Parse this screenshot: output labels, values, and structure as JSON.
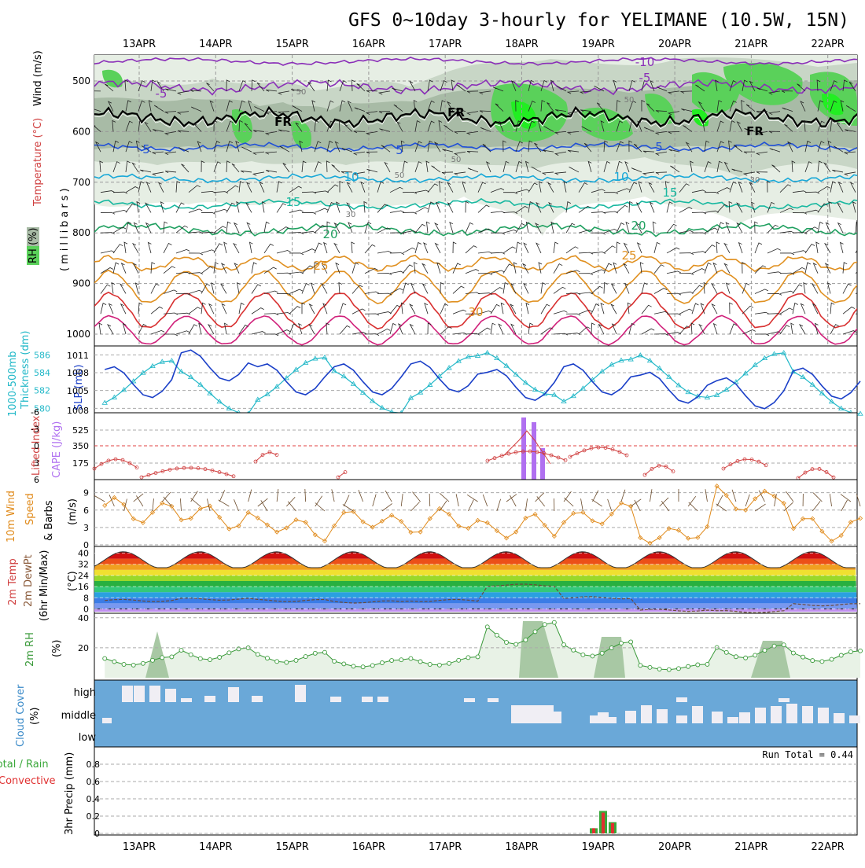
{
  "title": "GFS 0~10day 3-hourly for YELIMANE (10.5W, 15N)",
  "colors": {
    "rh_fill": "#c6d6c4",
    "rh_green": "#5ad15a",
    "rh_bright": "#22ee22",
    "temp_purple": "#8a2eb8",
    "temp_blue": "#2050d8",
    "temp_cyan": "#18a8d8",
    "temp_teal": "#18b8a0",
    "temp_green": "#20a060",
    "temp_orange": "#e09020",
    "temp_red": "#d83030",
    "temp_magenta": "#d0207a",
    "slp": "#1a3fc8",
    "thickness": "#22b8c8",
    "lifted": "#d04040",
    "cape": "#b070f0",
    "wind10": "#e08a1a",
    "rh2m": "#3a9a3a",
    "cloud_bg": "#6aa8d8",
    "cloud_fill": "#f0eef4",
    "precip_total": "#3aa83a",
    "precip_conv": "#e03030"
  },
  "icons": {
    "wind_barb": "wind-barb-icon"
  },
  "labels": {
    "date_ticks": [
      "13APR",
      "14APR",
      "15APR",
      "16APR",
      "17APR",
      "18APR",
      "19APR",
      "20APR",
      "21APR",
      "22APR"
    ],
    "upper": {
      "y_ticks": [
        "500",
        "600",
        "700",
        "800",
        "900",
        "1000"
      ],
      "axis_left": "RH (%)",
      "axis_temp": "Temperature (°C)",
      "axis_wind": "Wind (m/s)",
      "axis_pres": "(millibars)",
      "contour_labels": [
        "-10",
        "-5",
        "-5",
        "FR",
        "FR",
        "FR",
        "5",
        "5",
        "5",
        "10",
        "10",
        "15",
        "15",
        "20",
        "20",
        "25",
        "25",
        "30",
        "50",
        "50",
        "50",
        "50",
        "30",
        "30"
      ]
    },
    "slp": {
      "axis_thk": "Thickness (dm)",
      "axis_thk2": "1000-500mb",
      "axis_slp": "SLP (mb)",
      "thk_ticks": [
        "586",
        "584",
        "582",
        "580"
      ],
      "slp_ticks": [
        "1011",
        "1008",
        "1005",
        "1008"
      ]
    },
    "cape": {
      "axis_li": "Lifted Index",
      "axis_cape": "CAPE (J/kg)",
      "li_ticks": [
        "-6",
        "-3",
        "0",
        "3",
        "6"
      ],
      "cape_ticks": [
        "525",
        "350",
        "175"
      ]
    },
    "wind10": {
      "axis1": "10m Wind",
      "axis2": "Speed",
      "axis3": "& Barbs",
      "unit": "(m/s)",
      "ticks": [
        "9",
        "6",
        "3",
        "0"
      ]
    },
    "temp2m": {
      "axis1": "2m Temp",
      "axis2": "2m DewPt",
      "axis3": "(6hr Min/Max)",
      "unit": "(°C)",
      "ticks": [
        "40",
        "32",
        "24",
        "16",
        "8",
        "0"
      ]
    },
    "rh2m": {
      "axis": "2m RH",
      "unit": "(%)",
      "ticks": [
        "40",
        "20"
      ]
    },
    "cloud": {
      "axis1": "Cloud Cover",
      "unit": "(%)",
      "levels": [
        "high",
        "middle",
        "low"
      ]
    },
    "precip": {
      "axis1": "3hr Precip (mm)",
      "axis_total": "Total / Rain",
      "axis_conv": "Convective",
      "ticks": [
        "0.8",
        "0.6",
        "0.4",
        "0.2",
        "0"
      ],
      "run_total": "Run Total = 0.44"
    }
  },
  "chart_data": [
    {
      "type": "line",
      "panel": "thickness_slp",
      "x": [
        "13APR",
        "14APR",
        "15APR",
        "16APR",
        "17APR",
        "18APR",
        "19APR",
        "20APR",
        "21APR",
        "22APR"
      ],
      "series": [
        {
          "name": "Thickness (dm)",
          "values": [
            582.6,
            580.2,
            583.5,
            580.4,
            584.0,
            585.5,
            583.0,
            584.8,
            584.8,
            580.2
          ]
        },
        {
          "name": "SLP (mb)",
          "values": [
            1006.5,
            1012.5,
            1007.5,
            1007.5,
            1008.5,
            1005.5,
            1007.5,
            1004.5,
            1002.5,
            1006.0
          ]
        }
      ],
      "ylim_thickness": [
        579.5,
        587.0
      ],
      "ylim_slp": [
        1008,
        1011
      ]
    },
    {
      "type": "line",
      "panel": "lifted_index_cape",
      "x": [
        "13APR",
        "14APR",
        "15APR",
        "16APR",
        "17APR",
        "18APR",
        "19APR",
        "20APR",
        "21APR",
        "22APR"
      ],
      "series": [
        {
          "name": "Lifted Index",
          "values": [
            3,
            4,
            -2,
            6,
            4,
            -3,
            -1,
            3,
            2,
            5
          ]
        },
        {
          "name": "CAPE (J/kg)",
          "values": [
            0,
            0,
            0,
            0,
            0,
            650,
            0,
            0,
            0,
            0
          ]
        }
      ]
    },
    {
      "type": "line",
      "panel": "wind10m",
      "x": [
        "13APR",
        "14APR",
        "15APR",
        "16APR",
        "17APR",
        "18APR",
        "19APR",
        "20APR",
        "21APR",
        "22APR"
      ],
      "series": [
        {
          "name": "10m Wind Speed",
          "values": [
            6,
            5,
            3,
            4,
            4,
            3,
            5,
            2,
            8,
            3
          ]
        }
      ],
      "ylim": [
        0,
        10
      ]
    },
    {
      "type": "area",
      "panel": "temp2m",
      "x": [
        "13APR",
        "14APR",
        "15APR",
        "16APR",
        "17APR",
        "18APR",
        "19APR",
        "20APR",
        "21APR",
        "22APR"
      ],
      "series": [
        {
          "name": "2m Temp max",
          "values": [
            41,
            41,
            41,
            41,
            41,
            41,
            41,
            41,
            41,
            41
          ]
        },
        {
          "name": "2m Temp min",
          "values": [
            30,
            29,
            30,
            29,
            30,
            30,
            30,
            29,
            29,
            29
          ]
        },
        {
          "name": "2m DewPt",
          "values": [
            6,
            7,
            6,
            5,
            6,
            17,
            8,
            -1,
            -2,
            3
          ]
        }
      ],
      "ylim": [
        -2,
        42
      ]
    },
    {
      "type": "line",
      "panel": "rh2m",
      "x": [
        "13APR",
        "14APR",
        "15APR",
        "16APR",
        "17APR",
        "18APR",
        "19APR",
        "20APR",
        "21APR",
        "22APR"
      ],
      "series": [
        {
          "name": "2m RH",
          "values": [
            14,
            20,
            17,
            12,
            14,
            37,
            24,
            9,
            22,
            18
          ]
        }
      ],
      "ylim": [
        0,
        42
      ]
    },
    {
      "type": "bar",
      "panel": "precip",
      "categories": [
        "19APR 00Z",
        "19APR 03Z",
        "19APR 06Z"
      ],
      "series": [
        {
          "name": "Total",
          "values": [
            0.06,
            0.26,
            0.13
          ]
        },
        {
          "name": "Convective",
          "values": [
            0.06,
            0.24,
            0.12
          ]
        }
      ],
      "ylim": [
        0,
        1.0
      ]
    }
  ]
}
